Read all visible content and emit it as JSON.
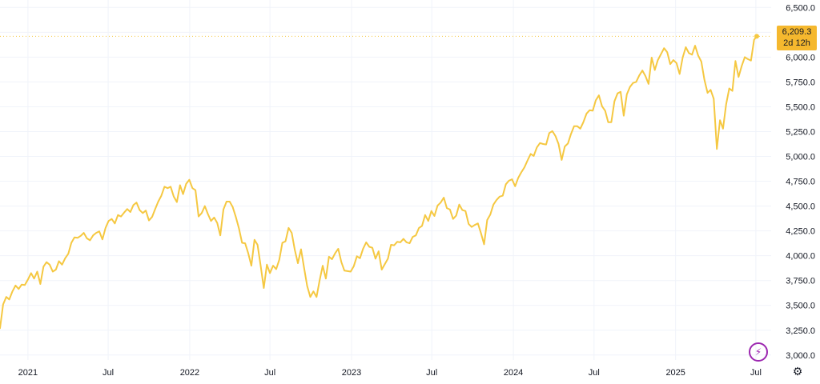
{
  "chart_data": {
    "type": "line",
    "title": "",
    "xlabel": "",
    "ylabel": "",
    "ylim": [
      2950,
      6575
    ],
    "y_ticks": [
      "6,500.0",
      "6,250.0",
      "6,000.0",
      "5,750.0",
      "5,500.0",
      "5,250.0",
      "5,000.0",
      "4,750.0",
      "4,500.0",
      "4,250.0",
      "4,000.0",
      "3,750.0",
      "3,500.0",
      "3,250.0",
      "3,000.0"
    ],
    "y_tick_values": [
      6500,
      6250,
      6000,
      5750,
      5500,
      5250,
      5000,
      4750,
      4500,
      4250,
      4000,
      3750,
      3500,
      3250,
      3000
    ],
    "x_ticks": [
      "2021",
      "Jul",
      "2022",
      "Jul",
      "2023",
      "Jul",
      "2024",
      "Jul",
      "2025",
      "Jul"
    ],
    "x_tick_dates": [
      "2021-01-01",
      "2021-07-01",
      "2022-01-01",
      "2022-07-01",
      "2023-01-01",
      "2023-07-01",
      "2024-01-01",
      "2024-07-01",
      "2025-01-01",
      "2025-07-01"
    ],
    "x_range": [
      "2020-10-30",
      "2025-07-03"
    ],
    "grid": true,
    "line_color": "#f5c842",
    "series": [
      {
        "name": "",
        "points": [
          [
            "2020-10-30",
            3270
          ],
          [
            "2020-11-06",
            3510
          ],
          [
            "2020-11-13",
            3585
          ],
          [
            "2020-11-20",
            3560
          ],
          [
            "2020-11-27",
            3640
          ],
          [
            "2020-12-04",
            3700
          ],
          [
            "2020-12-11",
            3665
          ],
          [
            "2020-12-18",
            3710
          ],
          [
            "2020-12-25",
            3705
          ],
          [
            "2021-01-01",
            3760
          ],
          [
            "2021-01-08",
            3825
          ],
          [
            "2021-01-15",
            3770
          ],
          [
            "2021-01-22",
            3840
          ],
          [
            "2021-01-29",
            3715
          ],
          [
            "2021-02-05",
            3890
          ],
          [
            "2021-02-12",
            3935
          ],
          [
            "2021-02-19",
            3910
          ],
          [
            "2021-02-26",
            3840
          ],
          [
            "2021-03-05",
            3860
          ],
          [
            "2021-03-12",
            3945
          ],
          [
            "2021-03-19",
            3910
          ],
          [
            "2021-03-26",
            3975
          ],
          [
            "2021-04-02",
            4020
          ],
          [
            "2021-04-09",
            4130
          ],
          [
            "2021-04-16",
            4185
          ],
          [
            "2021-04-23",
            4180
          ],
          [
            "2021-04-30",
            4200
          ],
          [
            "2021-05-07",
            4230
          ],
          [
            "2021-05-14",
            4175
          ],
          [
            "2021-05-21",
            4155
          ],
          [
            "2021-05-28",
            4205
          ],
          [
            "2021-06-04",
            4230
          ],
          [
            "2021-06-11",
            4245
          ],
          [
            "2021-06-18",
            4165
          ],
          [
            "2021-06-25",
            4280
          ],
          [
            "2021-07-02",
            4350
          ],
          [
            "2021-07-09",
            4370
          ],
          [
            "2021-07-16",
            4325
          ],
          [
            "2021-07-23",
            4410
          ],
          [
            "2021-07-30",
            4395
          ],
          [
            "2021-08-06",
            4435
          ],
          [
            "2021-08-13",
            4470
          ],
          [
            "2021-08-20",
            4440
          ],
          [
            "2021-08-27",
            4510
          ],
          [
            "2021-09-03",
            4535
          ],
          [
            "2021-09-10",
            4460
          ],
          [
            "2021-09-17",
            4430
          ],
          [
            "2021-09-24",
            4455
          ],
          [
            "2021-10-01",
            4355
          ],
          [
            "2021-10-08",
            4390
          ],
          [
            "2021-10-15",
            4470
          ],
          [
            "2021-10-22",
            4545
          ],
          [
            "2021-10-29",
            4605
          ],
          [
            "2021-11-05",
            4695
          ],
          [
            "2021-11-12",
            4680
          ],
          [
            "2021-11-19",
            4695
          ],
          [
            "2021-11-26",
            4595
          ],
          [
            "2021-12-03",
            4540
          ],
          [
            "2021-12-10",
            4710
          ],
          [
            "2021-12-17",
            4620
          ],
          [
            "2021-12-24",
            4725
          ],
          [
            "2021-12-31",
            4765
          ],
          [
            "2022-01-07",
            4680
          ],
          [
            "2022-01-14",
            4660
          ],
          [
            "2022-01-21",
            4395
          ],
          [
            "2022-01-28",
            4430
          ],
          [
            "2022-02-04",
            4500
          ],
          [
            "2022-02-11",
            4420
          ],
          [
            "2022-02-18",
            4350
          ],
          [
            "2022-02-25",
            4385
          ],
          [
            "2022-03-04",
            4330
          ],
          [
            "2022-03-11",
            4205
          ],
          [
            "2022-03-18",
            4465
          ],
          [
            "2022-03-25",
            4545
          ],
          [
            "2022-04-01",
            4545
          ],
          [
            "2022-04-08",
            4490
          ],
          [
            "2022-04-15",
            4390
          ],
          [
            "2022-04-22",
            4275
          ],
          [
            "2022-04-29",
            4130
          ],
          [
            "2022-05-06",
            4125
          ],
          [
            "2022-05-13",
            4025
          ],
          [
            "2022-05-20",
            3900
          ],
          [
            "2022-05-27",
            4160
          ],
          [
            "2022-06-03",
            4110
          ],
          [
            "2022-06-10",
            3900
          ],
          [
            "2022-06-17",
            3675
          ],
          [
            "2022-06-24",
            3910
          ],
          [
            "2022-07-01",
            3825
          ],
          [
            "2022-07-08",
            3900
          ],
          [
            "2022-07-15",
            3865
          ],
          [
            "2022-07-22",
            3960
          ],
          [
            "2022-07-29",
            4130
          ],
          [
            "2022-08-05",
            4145
          ],
          [
            "2022-08-12",
            4280
          ],
          [
            "2022-08-19",
            4230
          ],
          [
            "2022-08-26",
            4060
          ],
          [
            "2022-09-02",
            3925
          ],
          [
            "2022-09-09",
            4065
          ],
          [
            "2022-09-16",
            3875
          ],
          [
            "2022-09-23",
            3695
          ],
          [
            "2022-09-30",
            3585
          ],
          [
            "2022-10-07",
            3640
          ],
          [
            "2022-10-14",
            3585
          ],
          [
            "2022-10-21",
            3750
          ],
          [
            "2022-10-28",
            3900
          ],
          [
            "2022-11-04",
            3770
          ],
          [
            "2022-11-11",
            3990
          ],
          [
            "2022-11-18",
            3965
          ],
          [
            "2022-11-25",
            4025
          ],
          [
            "2022-12-02",
            4070
          ],
          [
            "2022-12-09",
            3935
          ],
          [
            "2022-12-16",
            3850
          ],
          [
            "2022-12-23",
            3845
          ],
          [
            "2022-12-30",
            3840
          ],
          [
            "2023-01-06",
            3895
          ],
          [
            "2023-01-13",
            3995
          ],
          [
            "2023-01-20",
            3975
          ],
          [
            "2023-01-27",
            4070
          ],
          [
            "2023-02-03",
            4135
          ],
          [
            "2023-02-10",
            4090
          ],
          [
            "2023-02-17",
            4080
          ],
          [
            "2023-02-24",
            3970
          ],
          [
            "2023-03-03",
            4045
          ],
          [
            "2023-03-10",
            3860
          ],
          [
            "2023-03-17",
            3915
          ],
          [
            "2023-03-24",
            3970
          ],
          [
            "2023-03-31",
            4110
          ],
          [
            "2023-04-07",
            4105
          ],
          [
            "2023-04-14",
            4140
          ],
          [
            "2023-04-21",
            4135
          ],
          [
            "2023-04-28",
            4170
          ],
          [
            "2023-05-05",
            4135
          ],
          [
            "2023-05-12",
            4125
          ],
          [
            "2023-05-19",
            4190
          ],
          [
            "2023-05-26",
            4205
          ],
          [
            "2023-06-02",
            4280
          ],
          [
            "2023-06-09",
            4300
          ],
          [
            "2023-06-16",
            4410
          ],
          [
            "2023-06-23",
            4350
          ],
          [
            "2023-06-30",
            4450
          ],
          [
            "2023-07-07",
            4400
          ],
          [
            "2023-07-14",
            4505
          ],
          [
            "2023-07-21",
            4535
          ],
          [
            "2023-07-28",
            4585
          ],
          [
            "2023-08-04",
            4480
          ],
          [
            "2023-08-11",
            4465
          ],
          [
            "2023-08-18",
            4370
          ],
          [
            "2023-08-25",
            4405
          ],
          [
            "2023-09-01",
            4515
          ],
          [
            "2023-09-08",
            4460
          ],
          [
            "2023-09-15",
            4450
          ],
          [
            "2023-09-22",
            4320
          ],
          [
            "2023-09-29",
            4290
          ],
          [
            "2023-10-06",
            4310
          ],
          [
            "2023-10-13",
            4325
          ],
          [
            "2023-10-20",
            4225
          ],
          [
            "2023-10-27",
            4115
          ],
          [
            "2023-11-03",
            4360
          ],
          [
            "2023-11-10",
            4415
          ],
          [
            "2023-11-17",
            4515
          ],
          [
            "2023-11-24",
            4560
          ],
          [
            "2023-12-01",
            4595
          ],
          [
            "2023-12-08",
            4605
          ],
          [
            "2023-12-15",
            4720
          ],
          [
            "2023-12-22",
            4755
          ],
          [
            "2023-12-29",
            4770
          ],
          [
            "2024-01-05",
            4700
          ],
          [
            "2024-01-12",
            4785
          ],
          [
            "2024-01-19",
            4840
          ],
          [
            "2024-01-26",
            4890
          ],
          [
            "2024-02-02",
            4960
          ],
          [
            "2024-02-09",
            5025
          ],
          [
            "2024-02-16",
            5005
          ],
          [
            "2024-02-23",
            5090
          ],
          [
            "2024-03-01",
            5135
          ],
          [
            "2024-03-08",
            5125
          ],
          [
            "2024-03-15",
            5120
          ],
          [
            "2024-03-22",
            5235
          ],
          [
            "2024-03-29",
            5255
          ],
          [
            "2024-04-05",
            5205
          ],
          [
            "2024-04-12",
            5125
          ],
          [
            "2024-04-19",
            4965
          ],
          [
            "2024-04-26",
            5100
          ],
          [
            "2024-05-03",
            5130
          ],
          [
            "2024-05-10",
            5225
          ],
          [
            "2024-05-17",
            5305
          ],
          [
            "2024-05-24",
            5305
          ],
          [
            "2024-05-31",
            5280
          ],
          [
            "2024-06-07",
            5345
          ],
          [
            "2024-06-14",
            5430
          ],
          [
            "2024-06-21",
            5465
          ],
          [
            "2024-06-28",
            5460
          ],
          [
            "2024-07-05",
            5565
          ],
          [
            "2024-07-12",
            5615
          ],
          [
            "2024-07-19",
            5505
          ],
          [
            "2024-07-26",
            5460
          ],
          [
            "2024-08-02",
            5345
          ],
          [
            "2024-08-09",
            5345
          ],
          [
            "2024-08-16",
            5555
          ],
          [
            "2024-08-23",
            5635
          ],
          [
            "2024-08-30",
            5650
          ],
          [
            "2024-09-06",
            5410
          ],
          [
            "2024-09-13",
            5625
          ],
          [
            "2024-09-20",
            5700
          ],
          [
            "2024-09-27",
            5740
          ],
          [
            "2024-10-04",
            5750
          ],
          [
            "2024-10-11",
            5815
          ],
          [
            "2024-10-18",
            5865
          ],
          [
            "2024-10-25",
            5810
          ],
          [
            "2024-11-01",
            5730
          ],
          [
            "2024-11-08",
            5995
          ],
          [
            "2024-11-15",
            5870
          ],
          [
            "2024-11-22",
            5970
          ],
          [
            "2024-11-29",
            6030
          ],
          [
            "2024-12-06",
            6090
          ],
          [
            "2024-12-13",
            6050
          ],
          [
            "2024-12-20",
            5930
          ],
          [
            "2024-12-27",
            5970
          ],
          [
            "2025-01-03",
            5940
          ],
          [
            "2025-01-10",
            5830
          ],
          [
            "2025-01-17",
            5995
          ],
          [
            "2025-01-24",
            6100
          ],
          [
            "2025-01-31",
            6040
          ],
          [
            "2025-02-07",
            6025
          ],
          [
            "2025-02-14",
            6115
          ],
          [
            "2025-02-21",
            6015
          ],
          [
            "2025-02-28",
            5955
          ],
          [
            "2025-03-07",
            5770
          ],
          [
            "2025-03-14",
            5640
          ],
          [
            "2025-03-21",
            5670
          ],
          [
            "2025-03-28",
            5580
          ],
          [
            "2025-04-04",
            5075
          ],
          [
            "2025-04-11",
            5365
          ],
          [
            "2025-04-18",
            5280
          ],
          [
            "2025-04-25",
            5525
          ],
          [
            "2025-05-02",
            5685
          ],
          [
            "2025-05-09",
            5660
          ],
          [
            "2025-05-16",
            5960
          ],
          [
            "2025-05-23",
            5800
          ],
          [
            "2025-05-30",
            5910
          ],
          [
            "2025-06-06",
            6000
          ],
          [
            "2025-06-13",
            5980
          ],
          [
            "2025-06-20",
            5965
          ],
          [
            "2025-06-27",
            6175
          ],
          [
            "2025-07-03",
            6209.3
          ]
        ]
      }
    ]
  },
  "price_badge": {
    "value": "6,209.3",
    "countdown": "2d 12h",
    "color": "#f5b82e"
  },
  "toolbar": {
    "bolt_icon": "lightning-icon",
    "settings_icon": "gear-icon"
  }
}
